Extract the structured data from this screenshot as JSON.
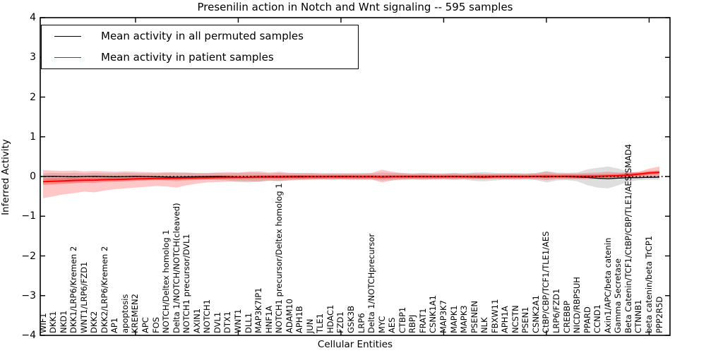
{
  "figure": {
    "title": "Presenilin action in Notch and Wnt signaling -- 595 samples",
    "xlabel": "Cellular Entities",
    "ylabel": "Inferred Activity"
  },
  "legend": {
    "items": [
      {
        "label": "Mean activity in all permuted samples",
        "color": "#000000"
      },
      {
        "label": "Mean activity in patient samples",
        "color": "#ff0000"
      }
    ]
  },
  "axes": {
    "yticks": [
      "4",
      "3",
      "2",
      "1",
      "0",
      "−1",
      "−2",
      "−3",
      "−4"
    ],
    "ytick_values": [
      4,
      3,
      2,
      1,
      0,
      -1,
      -2,
      -3,
      -4
    ],
    "x_major_tick_indices": [
      9,
      19,
      29,
      39,
      49,
      59
    ]
  },
  "chart_data": {
    "type": "line",
    "title": "Presenilin action in Notch and Wnt signaling -- 595 samples",
    "xlabel": "Cellular Entities",
    "ylabel": "Inferred Activity",
    "ylim": [
      -4,
      4
    ],
    "grid": false,
    "legend_position": "upper left",
    "categories": [
      "WIF1",
      "DKK1",
      "NKD1",
      "DKK1/LRP6/Kremen 2",
      "WNT1/LRP6/FZD1",
      "DKK2",
      "DKK2/LRP6/Kremen 2",
      "AP1",
      "apoptosis",
      "KREMEN2",
      "APC",
      "FOS",
      "NOTCH/Deltex homolog 1",
      "Delta 1/NOTCH/NOTCH(cleaved)",
      "NOTCH1 precursor/DVL1",
      "AXIN1",
      "NOTCH1",
      "DVL1",
      "DTX1",
      "WNT1",
      "DLL1",
      "MAP3K7IP1",
      "HNF1A",
      "NOTCH1 precursor/Deltex homolog 1",
      "ADAM10",
      "APH1B",
      "JUN",
      "TLE1",
      "HDAC1",
      "FZD1",
      "GSK3B",
      "LRP6",
      "Delta 1/NOTCHprecursor",
      "MYC",
      "AES",
      "CTBP1",
      "RBPJ",
      "FRAT1",
      "CSNK1A1",
      "MAP3K7",
      "MAPK1",
      "MAPK3",
      "PSENEN",
      "NLK",
      "FBXW11",
      "APH1A",
      "NCSTN",
      "PSEN1",
      "CSNK2A1",
      "CtBP/CBP/TCF1/TLE1/AES",
      "LRP6/FZD1",
      "CREBBP",
      "NICD/RBPSUH",
      "PPARD",
      "CCND1",
      "Axin1/APC/beta catenin",
      "Gamma Secretase",
      "Beta Catenin/TCF1/CtBP/CBP/TLE1/AES/SMAD4",
      "CTNNB1",
      "beta catenin/beta TrCP1",
      "PPP2R5D"
    ],
    "series": [
      {
        "name": "Mean activity in all permuted samples",
        "color": "#000000",
        "values": [
          0,
          0.005,
          0,
          -0.005,
          0,
          0.005,
          0,
          -0.005,
          0,
          0.005,
          0,
          -0.005,
          -0.01,
          -0.02,
          -0.012,
          -0.005,
          0,
          0.004,
          -0.004,
          -0.01,
          -0.012,
          -0.006,
          0,
          -0.004,
          0,
          0.004,
          0,
          -0.004,
          0,
          0.004,
          0,
          -0.004,
          0,
          -0.015,
          -0.008,
          0,
          0.004,
          0,
          -0.004,
          0,
          0.004,
          -0.004,
          -0.012,
          -0.018,
          -0.008,
          0,
          0.004,
          0,
          -0.006,
          -0.01,
          -0.004,
          -0.006,
          -0.012,
          -0.025,
          -0.045,
          -0.055,
          -0.04,
          -0.03,
          -0.028,
          -0.022,
          -0.018
        ]
      },
      {
        "name": "Mean activity in patient samples",
        "color": "#ff0000",
        "values": [
          -0.13,
          -0.12,
          -0.11,
          -0.1,
          -0.095,
          -0.09,
          -0.08,
          -0.075,
          -0.07,
          -0.06,
          -0.055,
          -0.05,
          -0.045,
          -0.04,
          -0.035,
          -0.03,
          -0.028,
          -0.025,
          -0.022,
          -0.02,
          -0.018,
          -0.015,
          -0.013,
          -0.012,
          -0.01,
          -0.01,
          -0.008,
          -0.008,
          -0.006,
          -0.008,
          -0.006,
          -0.008,
          -0.005,
          -0.01,
          -0.006,
          -0.005,
          -0.004,
          -0.005,
          -0.003,
          -0.004,
          -0.002,
          -0.003,
          -0.005,
          -0.003,
          -0.002,
          -0.002,
          -0.001,
          -0.002,
          0.002,
          0.005,
          0.002,
          0.003,
          0.002,
          0.004,
          0.006,
          0.012,
          0.02,
          0.035,
          0.06,
          0.09,
          0.105
        ]
      }
    ],
    "bands": [
      {
        "name": "permuted-spread",
        "color": "rgba(0,0,0,0.13)",
        "hi": [
          0.08,
          0.09,
          0.08,
          0.09,
          0.08,
          0.09,
          0.08,
          0.08,
          0.09,
          0.08,
          0.08,
          0.08,
          0.09,
          0.1,
          0.09,
          0.08,
          0.08,
          0.09,
          0.08,
          0.09,
          0.1,
          0.09,
          0.08,
          0.09,
          0.08,
          0.09,
          0.08,
          0.08,
          0.09,
          0.08,
          0.08,
          0.09,
          0.08,
          0.1,
          0.09,
          0.09,
          0.08,
          0.09,
          0.08,
          0.08,
          0.09,
          0.08,
          0.1,
          0.11,
          0.09,
          0.08,
          0.09,
          0.08,
          0.09,
          0.14,
          0.1,
          0.09,
          0.1,
          0.18,
          0.22,
          0.25,
          0.2,
          0.12,
          0.09,
          0.08,
          0.08
        ],
        "lo": [
          -0.08,
          -0.09,
          -0.08,
          -0.09,
          -0.08,
          -0.09,
          -0.08,
          -0.08,
          -0.09,
          -0.08,
          -0.08,
          -0.08,
          -0.1,
          -0.12,
          -0.1,
          -0.09,
          -0.08,
          -0.09,
          -0.1,
          -0.14,
          -0.15,
          -0.13,
          -0.11,
          -0.12,
          -0.1,
          -0.09,
          -0.08,
          -0.08,
          -0.09,
          -0.08,
          -0.08,
          -0.09,
          -0.08,
          -0.1,
          -0.09,
          -0.09,
          -0.08,
          -0.09,
          -0.08,
          -0.08,
          -0.09,
          -0.08,
          -0.11,
          -0.12,
          -0.1,
          -0.08,
          -0.09,
          -0.08,
          -0.09,
          -0.15,
          -0.1,
          -0.09,
          -0.12,
          -0.22,
          -0.28,
          -0.3,
          -0.22,
          -0.13,
          -0.09,
          -0.08,
          -0.08
        ]
      },
      {
        "name": "patient-spread",
        "color": "rgba(255,0,0,0.22)",
        "hi": [
          0.16,
          0.15,
          0.14,
          0.15,
          0.13,
          0.14,
          0.13,
          0.12,
          0.13,
          0.12,
          0.11,
          0.1,
          0.11,
          0.1,
          0.1,
          0.09,
          0.09,
          0.1,
          0.11,
          0.1,
          0.12,
          0.13,
          0.1,
          0.12,
          0.09,
          0.08,
          0.09,
          0.08,
          0.07,
          0.08,
          0.08,
          0.07,
          0.09,
          0.17,
          0.12,
          0.08,
          0.07,
          0.08,
          0.07,
          0.07,
          0.08,
          0.07,
          0.08,
          0.07,
          0.07,
          0.08,
          0.07,
          0.07,
          0.08,
          0.12,
          0.08,
          0.08,
          0.08,
          0.09,
          0.1,
          0.12,
          0.1,
          0.1,
          0.12,
          0.2,
          0.25
        ],
        "lo": [
          -0.55,
          -0.5,
          -0.45,
          -0.42,
          -0.38,
          -0.4,
          -0.35,
          -0.32,
          -0.3,
          -0.28,
          -0.26,
          -0.24,
          -0.25,
          -0.28,
          -0.22,
          -0.18,
          -0.15,
          -0.14,
          -0.13,
          -0.12,
          -0.12,
          -0.13,
          -0.1,
          -0.11,
          -0.09,
          -0.08,
          -0.08,
          -0.07,
          -0.07,
          -0.07,
          -0.08,
          -0.07,
          -0.08,
          -0.15,
          -0.1,
          -0.07,
          -0.07,
          -0.07,
          -0.07,
          -0.06,
          -0.07,
          -0.06,
          -0.07,
          -0.07,
          -0.06,
          -0.07,
          -0.06,
          -0.06,
          -0.07,
          -0.09,
          -0.07,
          -0.07,
          -0.07,
          -0.07,
          -0.07,
          -0.06,
          -0.05,
          -0.04,
          -0.03,
          -0.02,
          -0.02
        ]
      },
      {
        "name": "patient-inner-spread",
        "color": "rgba(255,0,0,0.30)",
        "halfwidth": 0.045
      }
    ],
    "zero_line": {
      "value": 0,
      "style": "dotted",
      "color": "#000000"
    }
  }
}
